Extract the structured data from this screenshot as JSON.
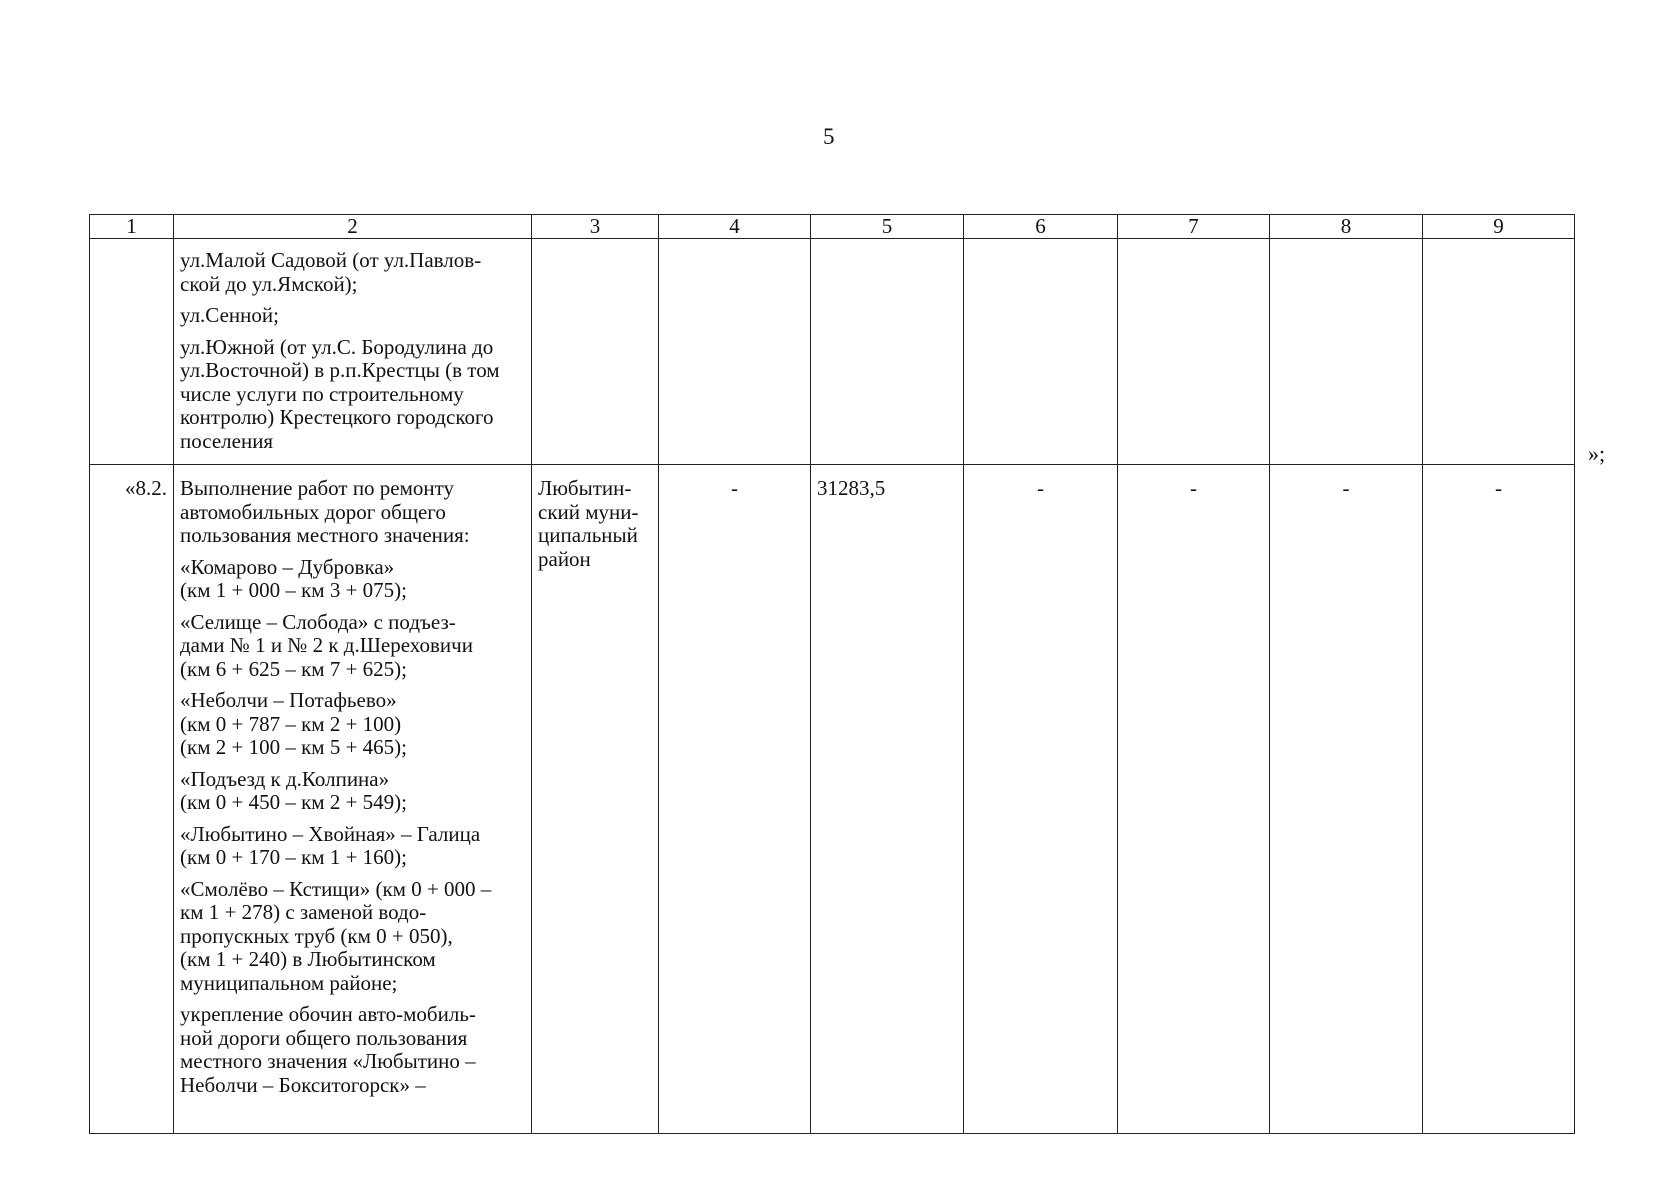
{
  "page_number": "5",
  "header": [
    "1",
    "2",
    "3",
    "4",
    "5",
    "6",
    "7",
    "8",
    "9"
  ],
  "row1": {
    "col2": [
      "ул.Малой Садовой (от ул.Павлов-\nской до ул.Ямской);",
      "ул.Сенной;",
      "ул.Южной (от ул.С. Бородулина до\nул.Восточной) в р.п.Крестцы (в том\nчисле услуги по строительному\nконтролю) Крестецкого городского\nпоселения"
    ],
    "closing_mark": "»;"
  },
  "row2": {
    "col1": "«8.2.",
    "col2": [
      "Выполнение работ по ремонту\nавтомобильных дорог общего\nпользования местного значения:",
      "«Комарово – Дубровка»\n(км 1 + 000 – км 3 + 075);",
      "«Селище – Слобода» с подъез-\nдами № 1 и № 2 к д.Шереховичи\n(км 6 + 625 – км 7 + 625);",
      "«Неболчи – Потафьево»\n(км 0 + 787 – км 2 + 100)\n(км 2 + 100 – км 5 + 465);",
      "«Подъезд к д.Колпина»\n(км 0 + 450 – км 2 + 549);",
      "«Любытино – Хвойная» – Галица\n(км 0 + 170 – км 1 + 160);",
      "«Смолёво – Кстищи» (км 0 + 000 –\nкм 1 + 278) с заменой водо-\nпропускных труб (км 0 + 050),\n(км 1 + 240) в Любытинском\nмуниципальном районе;",
      "укрепление обочин авто-мобиль-\nной дороги общего пользования\nместного значения «Любытино –\nНеболчи – Бокситогорск» –"
    ],
    "col3": "Любытин-\nский муни-\nципальный\nрайон",
    "col4": "-",
    "col5": "31283,5",
    "col6": "-",
    "col7": "-",
    "col8": "-",
    "col9": "-"
  }
}
